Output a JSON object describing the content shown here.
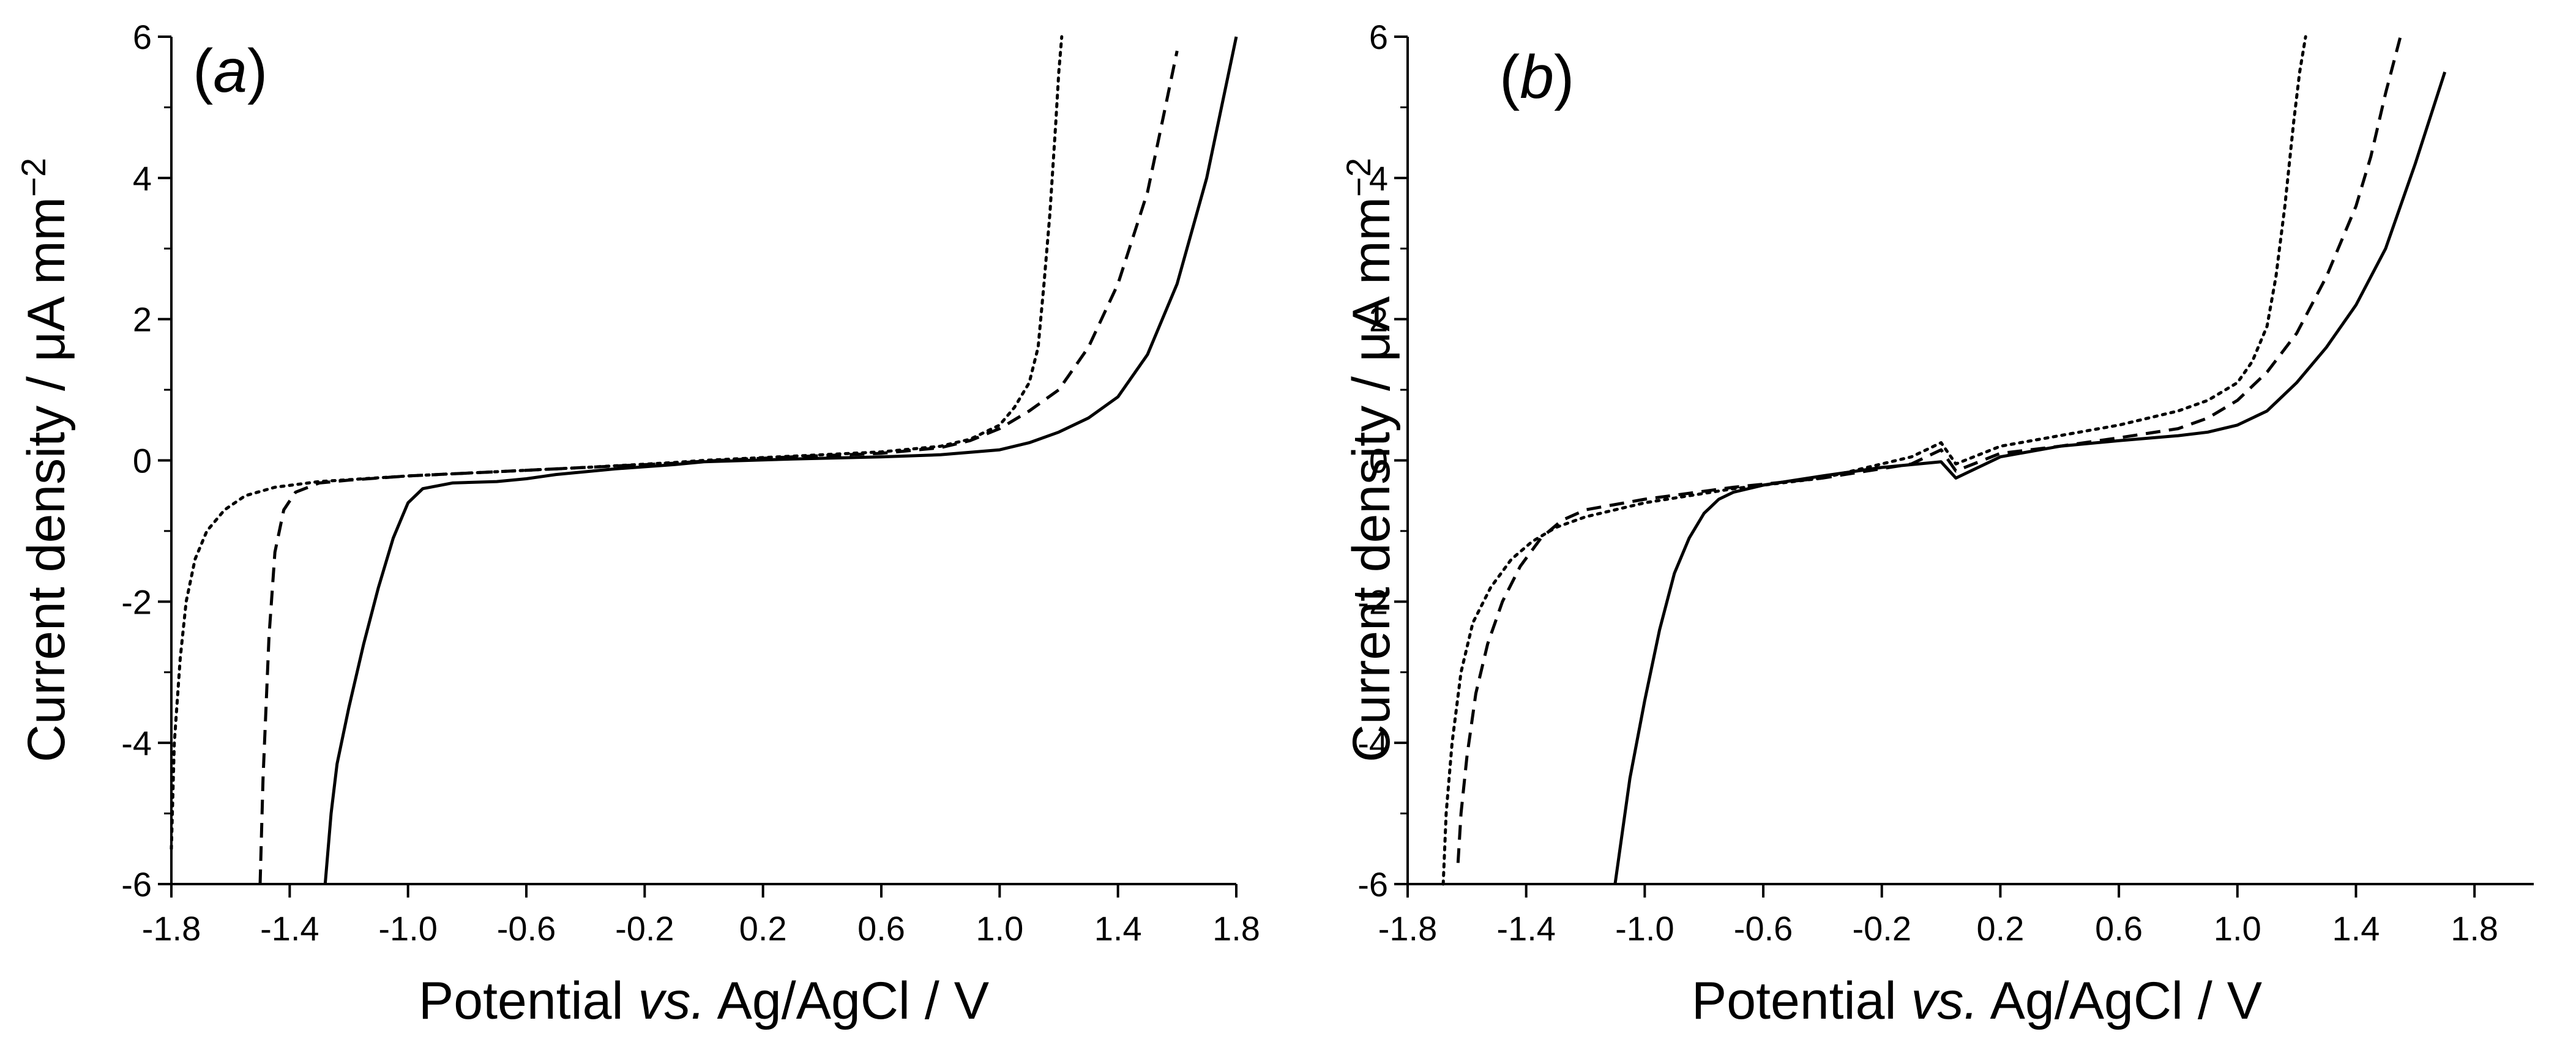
{
  "chart_data": [
    {
      "type": "line",
      "panel_label": "(a)",
      "panel_letter": "a",
      "xlabel": "Potential vs. Ag/AgCl / V",
      "xlabel_parts": [
        "Potential ",
        "vs.",
        " Ag/AgCl / V"
      ],
      "ylabel": "Current density / μA mm−2",
      "ylabel_parts": [
        "Current density / μA mm",
        "−2"
      ],
      "xlim": [
        -1.8,
        1.8
      ],
      "ylim": [
        -6,
        6
      ],
      "xticks": [
        -1.8,
        -1.4,
        -1.0,
        -0.6,
        -0.2,
        0.2,
        0.6,
        1.0,
        1.4,
        1.8
      ],
      "xtick_labels": [
        "-1.8",
        "-1.4",
        "-1.0",
        "-0.6",
        "-0.2",
        "0.2",
        "0.6",
        "1.0",
        "1.4",
        "1.8"
      ],
      "yticks": [
        -6,
        -4,
        -2,
        0,
        2,
        4,
        6
      ],
      "ytick_labels": [
        "-6",
        "-4",
        "-2",
        "0",
        "2",
        "4",
        "6"
      ],
      "grid": false,
      "series": [
        {
          "name": "solid",
          "style": "solid",
          "x": [
            -1.28,
            -1.26,
            -1.24,
            -1.2,
            -1.15,
            -1.1,
            -1.05,
            -1.02,
            -1.0,
            -0.95,
            -0.85,
            -0.7,
            -0.6,
            -0.5,
            -0.3,
            -0.1,
            0.0,
            0.3,
            0.6,
            0.8,
            1.0,
            1.1,
            1.2,
            1.3,
            1.4,
            1.5,
            1.6,
            1.7,
            1.75,
            1.8
          ],
          "y": [
            -6.0,
            -5.0,
            -4.3,
            -3.5,
            -2.6,
            -1.8,
            -1.1,
            -0.8,
            -0.6,
            -0.4,
            -0.32,
            -0.3,
            -0.26,
            -0.2,
            -0.12,
            -0.06,
            -0.02,
            0.02,
            0.05,
            0.08,
            0.15,
            0.25,
            0.4,
            0.6,
            0.9,
            1.5,
            2.5,
            4.0,
            5.0,
            6.0
          ]
        },
        {
          "name": "dashed",
          "style": "dashed",
          "x": [
            -1.5,
            -1.49,
            -1.47,
            -1.45,
            -1.42,
            -1.38,
            -1.3,
            -1.2,
            -1.0,
            -0.7,
            -0.4,
            -0.1,
            0.0,
            0.3,
            0.6,
            0.8,
            0.9,
            1.0,
            1.1,
            1.2,
            1.3,
            1.4,
            1.5,
            1.55,
            1.6
          ],
          "y": [
            -6.0,
            -4.5,
            -2.5,
            -1.3,
            -0.7,
            -0.45,
            -0.32,
            -0.28,
            -0.22,
            -0.16,
            -0.1,
            -0.04,
            -0.01,
            0.05,
            0.1,
            0.18,
            0.28,
            0.45,
            0.7,
            1.0,
            1.6,
            2.5,
            3.8,
            4.8,
            5.8
          ]
        },
        {
          "name": "dotted",
          "style": "dotted",
          "x": [
            -1.8,
            -1.79,
            -1.77,
            -1.75,
            -1.72,
            -1.68,
            -1.62,
            -1.55,
            -1.45,
            -1.3,
            -1.0,
            -0.7,
            -0.4,
            -0.1,
            0.0,
            0.3,
            0.6,
            0.8,
            0.9,
            1.0,
            1.05,
            1.1,
            1.13,
            1.15,
            1.17,
            1.19,
            1.2,
            1.21
          ],
          "y": [
            -5.5,
            -4.0,
            -2.8,
            -2.0,
            -1.4,
            -1.0,
            -0.7,
            -0.5,
            -0.38,
            -0.3,
            -0.22,
            -0.16,
            -0.1,
            -0.03,
            0.0,
            0.06,
            0.12,
            0.2,
            0.3,
            0.5,
            0.75,
            1.1,
            1.6,
            2.5,
            3.5,
            4.8,
            5.5,
            6.0
          ]
        }
      ]
    },
    {
      "type": "line",
      "panel_label": "(b)",
      "panel_letter": "b",
      "xlabel": "Potential vs. Ag/AgCl / V",
      "xlabel_parts": [
        "Potential ",
        "vs.",
        " Ag/AgCl / V"
      ],
      "ylabel": "Current density / μA mm−2",
      "ylabel_parts": [
        "Current density / μA mm",
        "−2"
      ],
      "xlim": [
        -1.8,
        2.0
      ],
      "ylim": [
        -6,
        6
      ],
      "xticks": [
        -1.8,
        -1.4,
        -1.0,
        -0.6,
        -0.2,
        0.2,
        0.6,
        1.0,
        1.4,
        1.8
      ],
      "xtick_labels": [
        "-1.8",
        "-1.4",
        "-1.0",
        "-0.6",
        "-0.2",
        "0.2",
        "0.6",
        "1.0",
        "1.4",
        "1.8"
      ],
      "yticks": [
        -6,
        -4,
        -2,
        0,
        2,
        4,
        6
      ],
      "ytick_labels": [
        "-6",
        "-4",
        "-2",
        "0",
        "2",
        "4",
        "6"
      ],
      "grid": false,
      "series": [
        {
          "name": "solid",
          "style": "solid",
          "x": [
            -1.1,
            -1.08,
            -1.05,
            -1.0,
            -0.95,
            -0.9,
            -0.85,
            -0.8,
            -0.75,
            -0.7,
            -0.6,
            -0.4,
            -0.2,
            0.0,
            0.05,
            0.2,
            0.4,
            0.6,
            0.8,
            0.9,
            1.0,
            1.1,
            1.2,
            1.3,
            1.4,
            1.5,
            1.6,
            1.7
          ],
          "y": [
            -6.0,
            -5.4,
            -4.5,
            -3.4,
            -2.4,
            -1.6,
            -1.1,
            -0.75,
            -0.55,
            -0.45,
            -0.35,
            -0.22,
            -0.1,
            -0.02,
            -0.25,
            0.05,
            0.2,
            0.28,
            0.35,
            0.4,
            0.5,
            0.7,
            1.1,
            1.6,
            2.2,
            3.0,
            4.2,
            5.5
          ]
        },
        {
          "name": "dashed",
          "style": "dashed",
          "x": [
            -1.63,
            -1.62,
            -1.6,
            -1.57,
            -1.53,
            -1.48,
            -1.42,
            -1.35,
            -1.28,
            -1.2,
            -1.0,
            -0.7,
            -0.4,
            -0.1,
            0.0,
            0.05,
            0.2,
            0.4,
            0.6,
            0.8,
            0.9,
            1.0,
            1.1,
            1.2,
            1.3,
            1.4,
            1.45,
            1.5,
            1.55
          ],
          "y": [
            -5.7,
            -5.0,
            -4.2,
            -3.3,
            -2.6,
            -2.0,
            -1.5,
            -1.1,
            -0.85,
            -0.7,
            -0.55,
            -0.38,
            -0.25,
            -0.05,
            0.15,
            -0.15,
            0.1,
            0.2,
            0.32,
            0.45,
            0.6,
            0.85,
            1.25,
            1.8,
            2.6,
            3.6,
            4.3,
            5.2,
            6.0
          ]
        },
        {
          "name": "dotted",
          "style": "dotted",
          "x": [
            -1.68,
            -1.67,
            -1.65,
            -1.62,
            -1.58,
            -1.52,
            -1.45,
            -1.38,
            -1.3,
            -1.2,
            -1.0,
            -0.7,
            -0.4,
            -0.1,
            0.0,
            0.05,
            0.2,
            0.4,
            0.6,
            0.8,
            0.9,
            1.0,
            1.05,
            1.1,
            1.13,
            1.16,
            1.19,
            1.21,
            1.23
          ],
          "y": [
            -6.0,
            -5.0,
            -4.0,
            -3.0,
            -2.3,
            -1.8,
            -1.4,
            -1.15,
            -0.95,
            -0.8,
            -0.6,
            -0.4,
            -0.25,
            0.05,
            0.25,
            -0.05,
            0.2,
            0.35,
            0.5,
            0.7,
            0.85,
            1.1,
            1.4,
            1.9,
            2.6,
            3.6,
            4.8,
            5.5,
            6.0
          ]
        }
      ]
    }
  ]
}
